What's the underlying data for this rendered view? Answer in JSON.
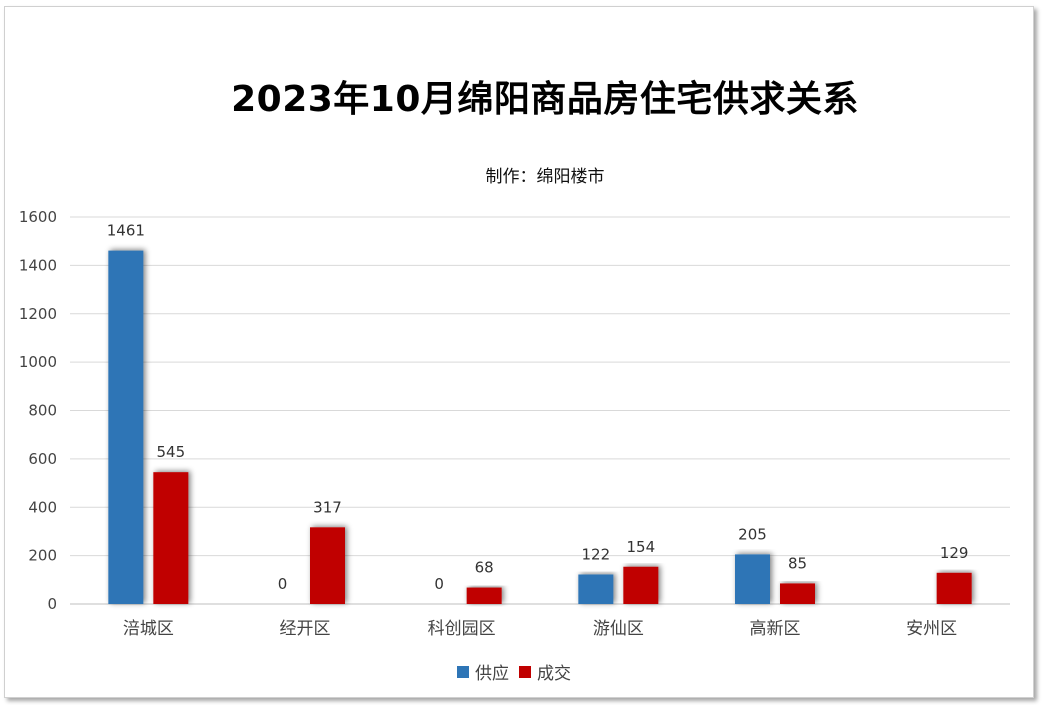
{
  "chart_data": {
    "type": "bar",
    "title": "2023年10月绵阳商品房住宅供求关系",
    "subtitle": "制作：绵阳楼市",
    "xlabel": "",
    "ylabel": "",
    "categories": [
      "涪城区",
      "经开区",
      "科创园区",
      "游仙区",
      "高新区",
      "安州区"
    ],
    "series": [
      {
        "name": "供应",
        "color": "#2e75b6",
        "values": [
          1461,
          0,
          0,
          122,
          205,
          null
        ]
      },
      {
        "name": "成交",
        "color": "#c00000",
        "values": [
          545,
          317,
          68,
          154,
          85,
          129
        ]
      }
    ],
    "data_labels": [
      [
        "1461",
        "0",
        "0",
        "122",
        "205",
        ""
      ],
      [
        "545",
        "317",
        "68",
        "154",
        "85",
        "129"
      ]
    ],
    "ylim": [
      0,
      1600
    ],
    "yticks": [
      0,
      200,
      400,
      600,
      800,
      1000,
      1200,
      1400,
      1600
    ],
    "grid": true,
    "legend_position": "bottom"
  }
}
